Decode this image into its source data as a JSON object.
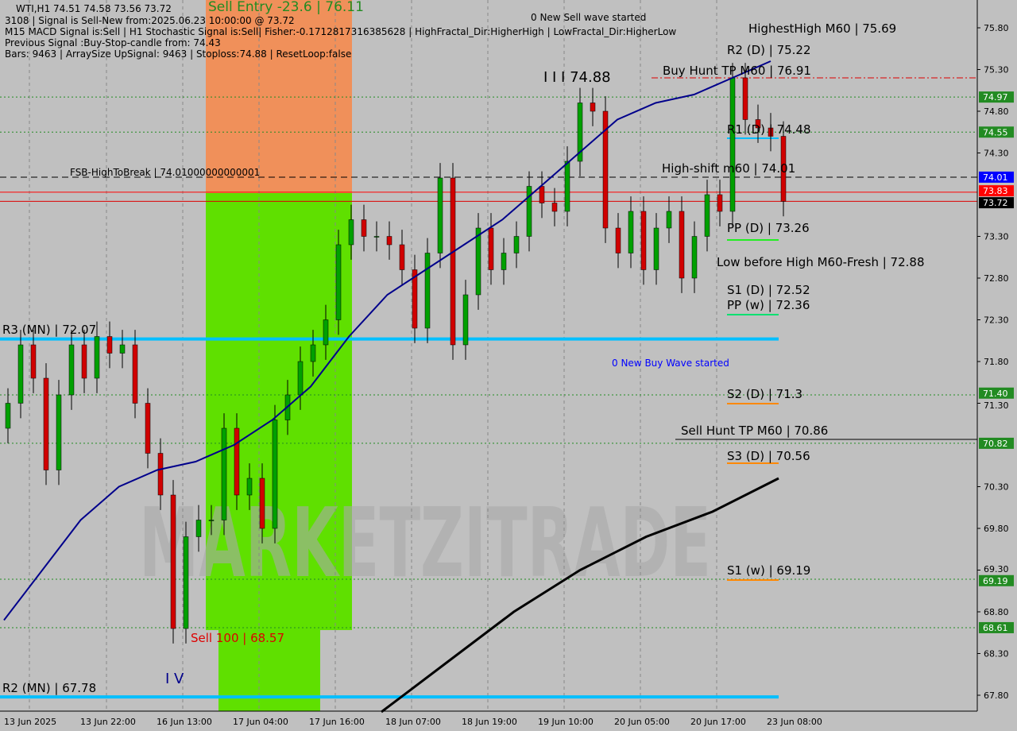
{
  "chart_data": {
    "type": "candlestick",
    "symbol_line": "WTI,H1  74.51 74.58 73.56 73.72",
    "info_lines": [
      "3108 | Signal is Sell-New from:2025.06.23 10:00:00 @ 73.72",
      "M15 MACD Signal is:Sell | H1 Stochastic Signal is:Sell| Fisher:-0.1712817316385628 | HighFractal_Dir:HigherHigh | LowFractal_Dir:HigherLow",
      "Previous Signal :Buy-Stop-candle from: 74.43",
      "Bars: 9463 | ArraySize UpSignal: 9463 | Stoploss:74.88 | ResetLoop:false"
    ],
    "ylim": [
      67.6,
      75.95
    ],
    "y_ticks": [
      "75.80",
      "75.30",
      "74.80",
      "74.30",
      "73.30",
      "72.80",
      "72.30",
      "71.80",
      "71.30",
      "70.30",
      "69.80",
      "69.30",
      "68.80",
      "68.30",
      "67.80"
    ],
    "x_ticks": [
      "13 Jun 2025",
      "13 Jun 22:00",
      "16 Jun 13:00",
      "17 Jun 04:00",
      "17 Jun 16:00",
      "18 Jun 07:00",
      "18 Jun 19:00",
      "19 Jun 10:00",
      "20 Jun 05:00",
      "20 Jun 17:00",
      "23 Jun 08:00"
    ],
    "closes": [
      71.3,
      72.0,
      71.6,
      70.5,
      71.4,
      72.0,
      71.6,
      72.1,
      71.9,
      72.0,
      71.3,
      70.7,
      70.2,
      68.6,
      69.7,
      69.9,
      69.9,
      71.0,
      70.2,
      70.4,
      69.8,
      71.1,
      71.4,
      71.8,
      72.0,
      72.3,
      73.2,
      73.5,
      73.3,
      73.3,
      73.2,
      72.9,
      72.2,
      73.1,
      74.0,
      72.0,
      72.6,
      73.4,
      72.9,
      73.1,
      73.3,
      73.9,
      73.7,
      73.6,
      74.2,
      74.9,
      74.8,
      73.4,
      73.1,
      73.6,
      72.9,
      73.4,
      73.6,
      72.8,
      73.3,
      73.8,
      73.6,
      75.2,
      74.7,
      74.6,
      74.5,
      73.72
    ],
    "first_open": 71.0,
    "ma_blue": [
      68.7,
      69.3,
      69.9,
      70.3,
      70.5,
      70.6,
      70.8,
      71.1,
      71.5,
      72.1,
      72.6,
      72.9,
      73.2,
      73.5,
      73.9,
      74.3,
      74.7,
      74.9,
      75.0,
      75.2,
      75.4
    ],
    "ma_black": [
      67.6,
      68.2,
      68.8,
      69.3,
      69.7,
      70.0,
      70.4
    ],
    "price_tags": [
      {
        "text": "74.97",
        "price": 74.97,
        "bg": "#228b22"
      },
      {
        "text": "74.55",
        "price": 74.55,
        "bg": "#228b22"
      },
      {
        "text": "74.01",
        "price": 74.01,
        "bg": "#0000ff"
      },
      {
        "text": "73.83",
        "price": 73.83,
        "bg": "#ff0000"
      },
      {
        "text": "73.72",
        "price": 73.72,
        "bg": "#000000"
      },
      {
        "text": "71.40",
        "price": 71.4,
        "bg": "#228b22"
      },
      {
        "text": "70.82",
        "price": 70.82,
        "bg": "#228b22"
      },
      {
        "text": "69.19",
        "price": 69.19,
        "bg": "#228b22"
      },
      {
        "text": "68.61",
        "price": 68.61,
        "bg": "#228b22"
      }
    ],
    "annotations": {
      "sell_entry": "Sell Entry -23.6 | 76.11",
      "new_sell_wave": "0 New Sell wave started",
      "new_buy_wave": "0 New Buy Wave started",
      "highest_high": "HighestHigh   M60 | 75.69",
      "r2d": "R2 (D) | 75.22",
      "buy_hunt": "Buy Hunt TP M60 | 76.91",
      "wave3": "I I I 74.88",
      "r1d": "R1 (D) | 74.48",
      "fsb": "FSB-HighToBreak | 74.01000000000001",
      "high_shift": "High-shift m60 | 74.01",
      "ppd": "PP (D) | 73.26",
      "low_before_high": "Low before High   M60-Fresh | 72.88",
      "s1d": "S1 (D) | 72.52",
      "ppw": "PP (w) | 72.36",
      "r3mn": "R3 (MN) | 72.07",
      "s2d": "S2 (D) | 71.3",
      "sell_hunt": "Sell Hunt TP M60 | 70.86",
      "s3d": "S3 (D) | 70.56",
      "s1w": "S1 (w) | 69.19",
      "sell100": "Sell 100 | 68.57",
      "wave4": "I V",
      "r2mn": "R2 (MN) | 67.78"
    },
    "watermark": "MARKETZITRADE",
    "colors": {
      "bull": "#00a000",
      "bear": "#d00000",
      "cyan": "#00bfff",
      "green_zone": "#5fe000",
      "orange_zone": "#f0905a",
      "ma_blue": "#00008b"
    }
  }
}
